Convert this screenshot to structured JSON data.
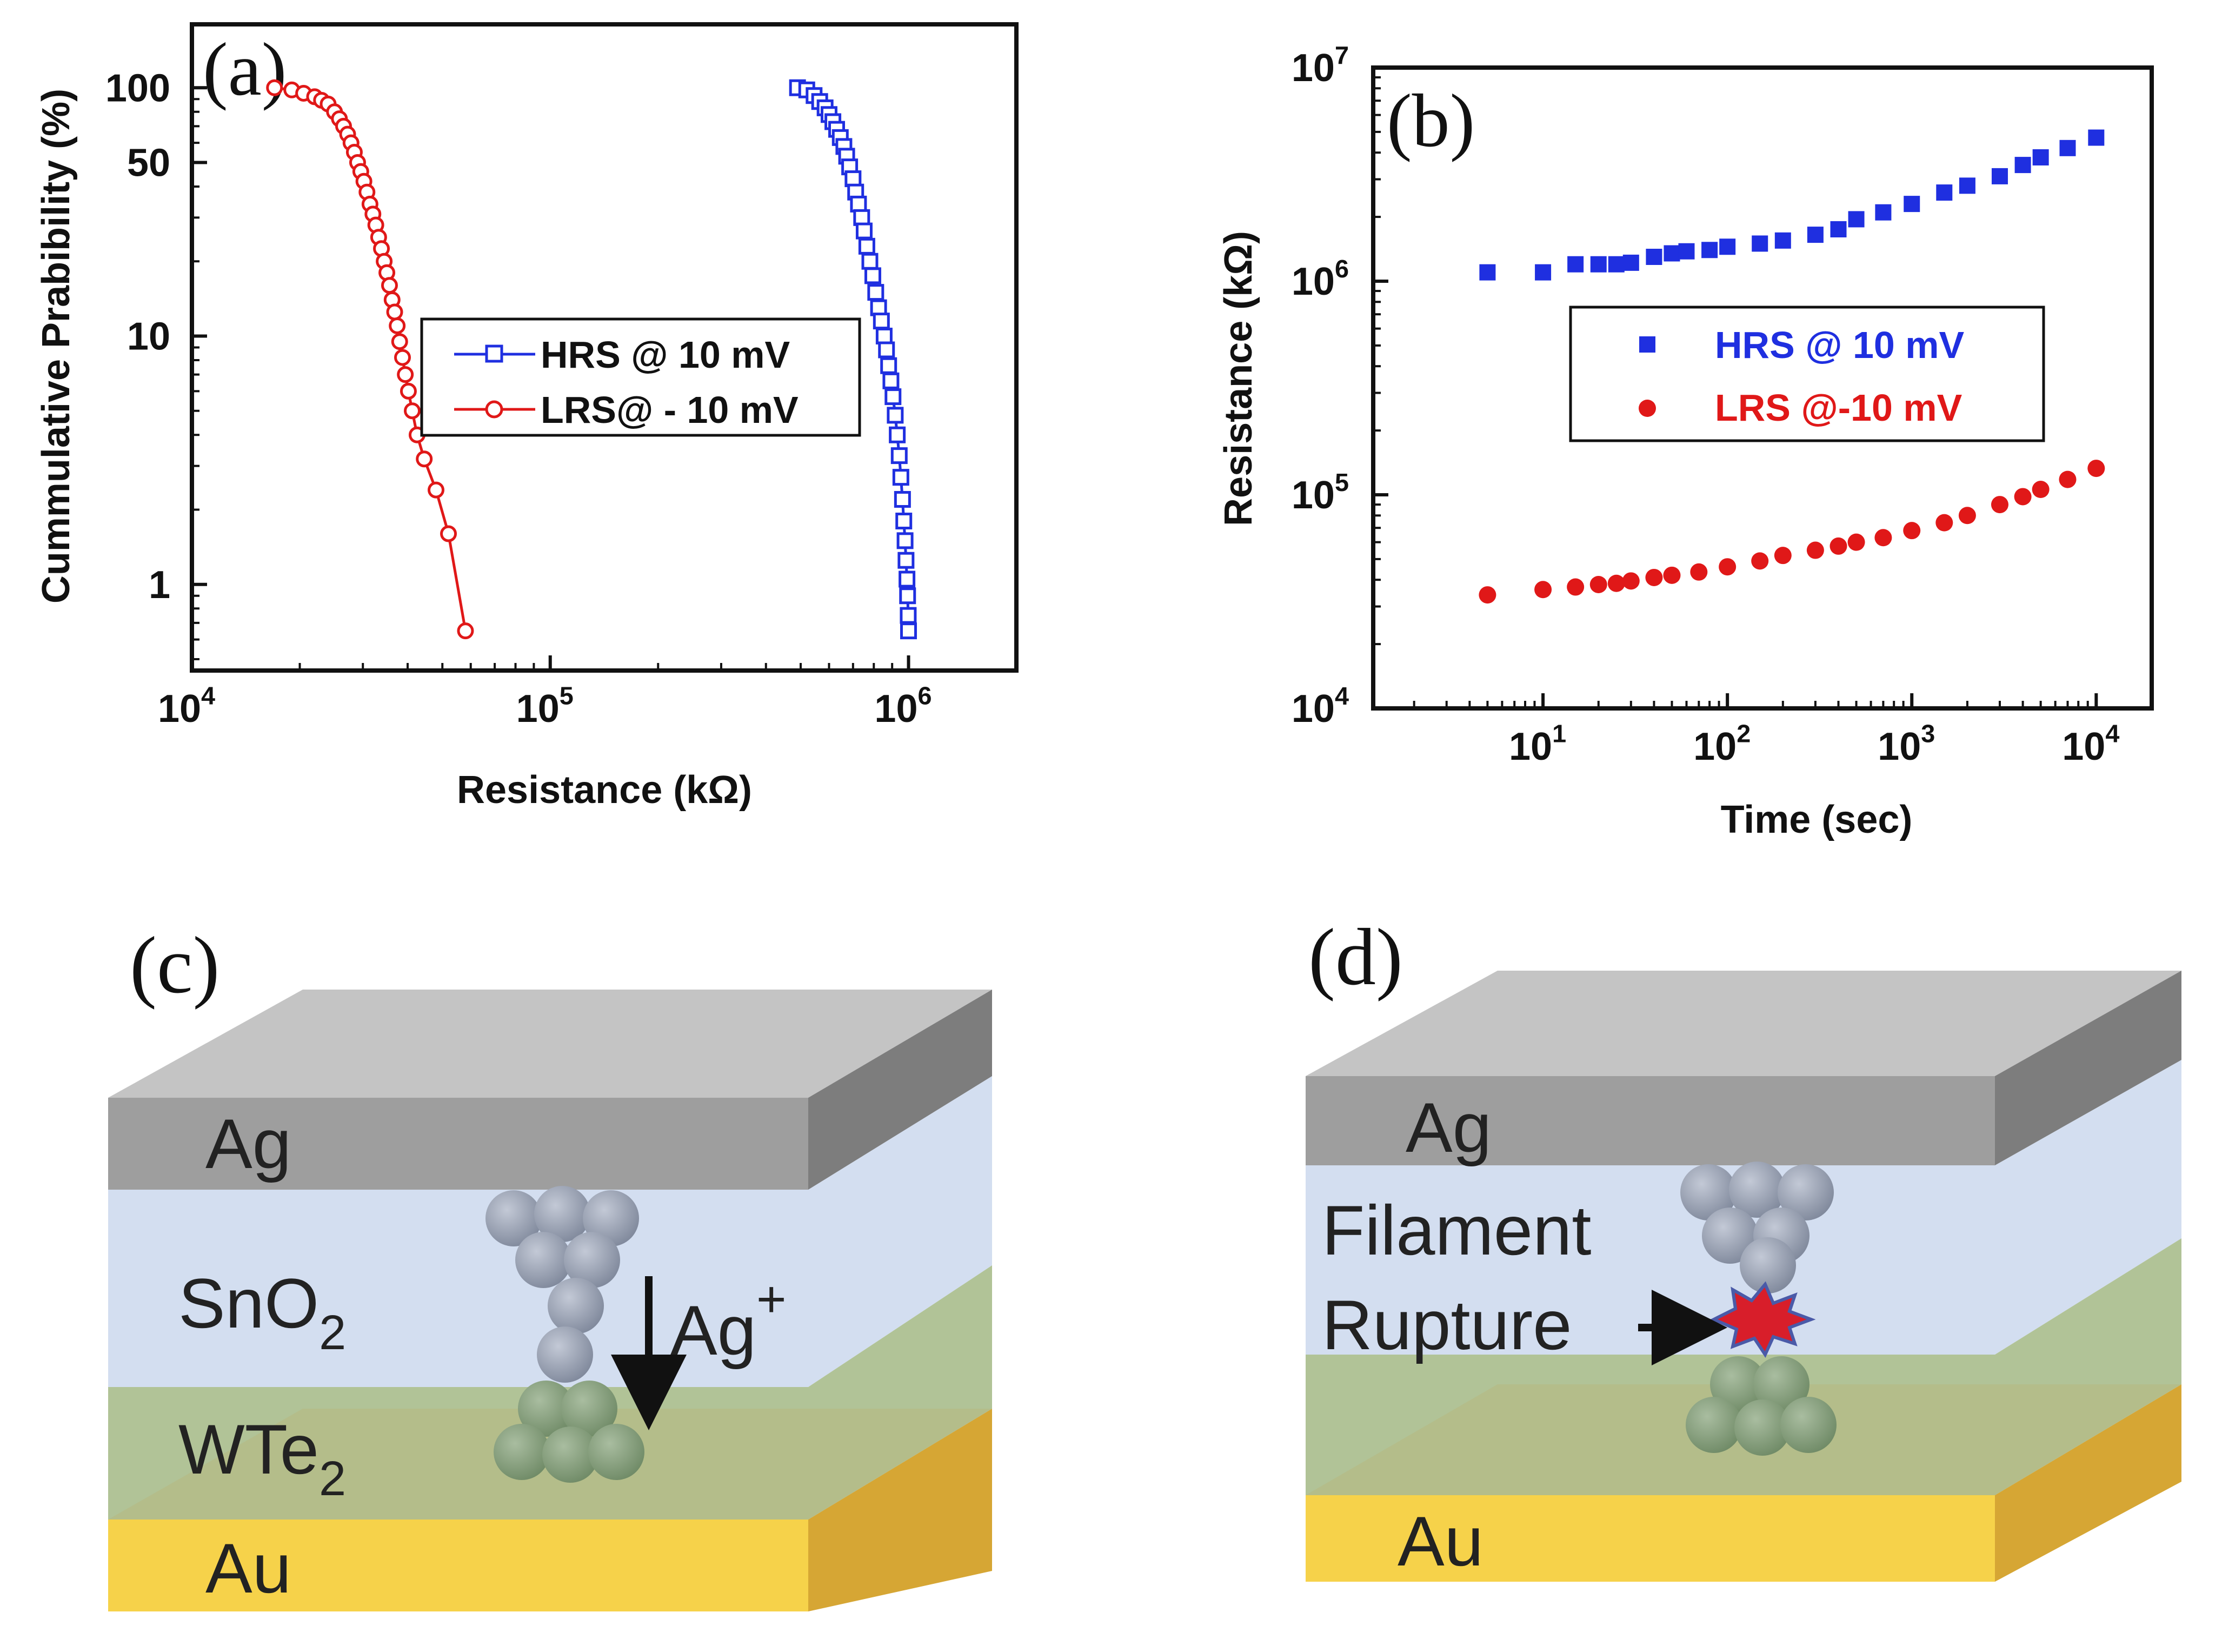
{
  "panels": {
    "a": "(a)",
    "b": "(b)",
    "c": "(c)",
    "d": "(d)"
  },
  "colors": {
    "hrs": "#1f2fe0",
    "lrs": "#e01818",
    "ag_front": "#9e9e9e",
    "ag_top": "#c4c4c4",
    "ag_side": "#7d7d7d",
    "sno2": "#d3def0",
    "wte2": "#a9bd8c",
    "au_front": "#f6d24a",
    "au_side": "#d6a634",
    "ball_grey": "#8f98ab",
    "ball_green": "#7f9a74",
    "spark": "#d81e2a"
  },
  "chart_data": [
    {
      "type": "line",
      "panel": "(a)",
      "xlabel": "Resistance (kΩ)",
      "ylabel": "Cummulative Prabibility (%)",
      "xscale": "log",
      "yscale": "log",
      "xlim": [
        10000,
        2000000
      ],
      "ylim": [
        0.45,
        180
      ],
      "xticks": [
        {
          "value": 10000,
          "label": "10",
          "exp": "4"
        },
        {
          "value": 100000,
          "label": "10",
          "exp": "5"
        },
        {
          "value": 1000000,
          "label": "10",
          "exp": "6"
        }
      ],
      "yticks": [
        {
          "value": 1,
          "label": "1"
        },
        {
          "value": 10,
          "label": "10"
        },
        {
          "value": 50,
          "label": "50"
        },
        {
          "value": 100,
          "label": "100"
        }
      ],
      "legend": {
        "position": "center-right"
      },
      "series": [
        {
          "name": "HRS @ 10 mV",
          "marker": "square-open",
          "color": "#1f2fe0",
          "x": [
            490000,
            520000,
            545000,
            565000,
            585000,
            600000,
            615000,
            630000,
            645000,
            660000,
            672000,
            685000,
            700000,
            712000,
            725000,
            740000,
            752000,
            765000,
            780000,
            795000,
            810000,
            825000,
            840000,
            855000,
            868000,
            880000,
            893000,
            905000,
            918000,
            930000,
            942000,
            952000,
            962000,
            970000,
            978000,
            984000,
            990000,
            994000,
            998000,
            1000000
          ],
          "y": [
            100,
            98,
            93,
            88,
            83,
            78,
            73,
            68,
            63,
            58,
            53,
            48,
            43,
            38,
            34,
            30,
            26.5,
            23,
            20,
            17.5,
            15,
            13,
            11.5,
            10,
            8.8,
            7.6,
            6.6,
            5.7,
            4.8,
            4.0,
            3.3,
            2.7,
            2.2,
            1.8,
            1.5,
            1.25,
            1.05,
            0.9,
            0.75,
            0.65
          ]
        },
        {
          "name": "LRS@ - 10 mV",
          "marker": "circle-open",
          "color": "#e01818",
          "x": [
            17000,
            19000,
            20500,
            22000,
            23000,
            24000,
            25000,
            25800,
            26500,
            27200,
            27800,
            28400,
            29000,
            29600,
            30200,
            30800,
            31400,
            32000,
            32600,
            33200,
            33800,
            34400,
            35000,
            35600,
            36200,
            36800,
            37400,
            38000,
            38700,
            39400,
            40200,
            41200,
            42500,
            44500,
            48000,
            52000,
            58000
          ],
          "y": [
            100,
            98,
            95,
            92,
            89,
            86,
            80,
            75,
            70,
            65,
            60,
            55,
            50,
            46,
            42,
            38,
            34,
            31,
            28,
            25,
            22.5,
            20,
            18,
            16,
            14,
            12.5,
            11,
            9.5,
            8.2,
            7.0,
            6.0,
            5.0,
            4.0,
            3.2,
            2.4,
            1.6,
            0.65
          ]
        }
      ]
    },
    {
      "type": "scatter",
      "panel": "(b)",
      "xlabel": "Time (sec)",
      "ylabel": "Resistance (kΩ)",
      "xscale": "log",
      "yscale": "log",
      "xlim": [
        1.2,
        20000
      ],
      "ylim": [
        10000,
        10000000
      ],
      "xticks": [
        {
          "value": 10,
          "label": "10",
          "exp": "1"
        },
        {
          "value": 100,
          "label": "10",
          "exp": "2"
        },
        {
          "value": 1000,
          "label": "10",
          "exp": "3"
        },
        {
          "value": 10000,
          "label": "10",
          "exp": "4"
        }
      ],
      "yticks": [
        {
          "value": 10000,
          "label": "10",
          "exp": "4"
        },
        {
          "value": 100000,
          "label": "10",
          "exp": "5"
        },
        {
          "value": 1000000,
          "label": "10",
          "exp": "6"
        },
        {
          "value": 10000000,
          "label": "10",
          "exp": "7"
        }
      ],
      "legend": {
        "position": "center-right"
      },
      "series": [
        {
          "name": "HRS @ 10 mV",
          "marker": "square-filled",
          "color": "#1f2fe0",
          "x": [
            5,
            10,
            15,
            20,
            25,
            30,
            40,
            50,
            60,
            80,
            100,
            150,
            200,
            300,
            400,
            500,
            700,
            1000,
            1500,
            2000,
            3000,
            4000,
            5000,
            7000,
            10000
          ],
          "y": [
            1100000,
            1100000,
            1200000,
            1200000,
            1200000,
            1220000,
            1300000,
            1350000,
            1380000,
            1400000,
            1450000,
            1500000,
            1550000,
            1650000,
            1750000,
            1950000,
            2100000,
            2300000,
            2600000,
            2800000,
            3100000,
            3500000,
            3800000,
            4200000,
            4700000
          ]
        },
        {
          "name": "LRS @-10 mV",
          "marker": "circle-filled",
          "color": "#e01818",
          "x": [
            5,
            10,
            15,
            20,
            25,
            30,
            40,
            50,
            70,
            100,
            150,
            200,
            300,
            400,
            500,
            700,
            1000,
            1500,
            2000,
            3000,
            4000,
            5000,
            7000,
            10000
          ],
          "y": [
            34000,
            36000,
            37000,
            38000,
            38500,
            39500,
            41000,
            42000,
            43500,
            46000,
            49000,
            52000,
            55000,
            57500,
            60000,
            63000,
            68000,
            74000,
            80000,
            90000,
            98000,
            106000,
            118000,
            133000
          ]
        }
      ]
    }
  ],
  "diagram_c": {
    "ag": "Ag",
    "sno2_base": "SnO",
    "sno2_sub": "2",
    "ion_base": "Ag",
    "ion_sup": "+",
    "wte2_base": "WTe",
    "wte2_sub": "2",
    "au": "Au"
  },
  "diagram_d": {
    "ag": "Ag",
    "filament": "Filament",
    "rupture": "Rupture",
    "au": "Au"
  }
}
